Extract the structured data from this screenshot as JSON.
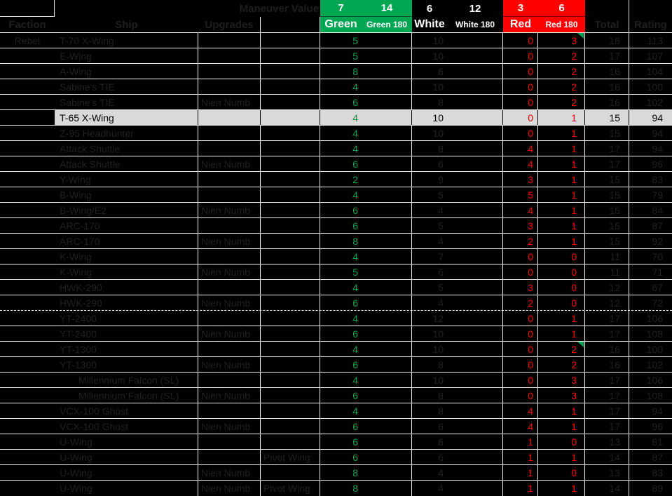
{
  "sheet": {
    "maneuver_value_label": "Maneuver Value",
    "improve_values": {
      "green": 7,
      "green_180": 14,
      "white": 6,
      "white_180": 12,
      "red": 3,
      "red_180": 6
    },
    "column_headers": {
      "faction": "Faction",
      "ship": "Ship",
      "upgrades": "Upgrades",
      "green": "Green",
      "green_180": "Green 180",
      "white": "White",
      "white_180": "White 180",
      "red": "Red",
      "red_180": "Red 180",
      "total": "Total",
      "rating": "Rating"
    }
  },
  "colors": {
    "background": "#000000",
    "header_green": "#00A651",
    "header_red": "#FE0000",
    "data_green_text": "#16A14D",
    "data_red_text": "#FF0000",
    "dim_text_on_black": "#202020",
    "highlight_row_bg": "#D9D9D9",
    "gridline": "#EEEEEE",
    "comment_marker": "#00A651"
  },
  "rows": [
    {
      "faction": "Rebel",
      "ship": "T-70 X-Wing",
      "indent": false,
      "upgrade1": "",
      "upgrade2": "",
      "green": 5,
      "white": 10,
      "red": 0,
      "red180": 3,
      "total": 18,
      "rating": 113,
      "highlighted": false,
      "marker": true,
      "page_break_after": false
    },
    {
      "faction": "",
      "ship": "E-Wing",
      "indent": false,
      "upgrade1": "",
      "upgrade2": "",
      "green": 5,
      "white": 10,
      "red": 0,
      "red180": 2,
      "total": 17,
      "rating": 107,
      "highlighted": false,
      "marker": false,
      "page_break_after": false
    },
    {
      "faction": "",
      "ship": "A-Wing",
      "indent": false,
      "upgrade1": "",
      "upgrade2": "",
      "green": 8,
      "white": 6,
      "red": 0,
      "red180": 2,
      "total": 16,
      "rating": 104,
      "highlighted": false,
      "marker": false,
      "page_break_after": false
    },
    {
      "faction": "",
      "ship": "Sabine's TIE",
      "indent": false,
      "upgrade1": "",
      "upgrade2": "",
      "green": 4,
      "white": 10,
      "red": 0,
      "red180": 2,
      "total": 16,
      "rating": 100,
      "highlighted": false,
      "marker": false,
      "page_break_after": false
    },
    {
      "faction": "",
      "ship": "Sabine's TIE",
      "indent": false,
      "upgrade1": "Nien Numb",
      "upgrade2": "",
      "green": 6,
      "white": 8,
      "red": 0,
      "red180": 2,
      "total": 16,
      "rating": 102,
      "highlighted": false,
      "marker": false,
      "page_break_after": false
    },
    {
      "faction": "",
      "ship": "T-65 X-Wing",
      "indent": false,
      "upgrade1": "",
      "upgrade2": "",
      "green": 4,
      "white": 10,
      "red": 0,
      "red180": 1,
      "total": 15,
      "rating": 94,
      "highlighted": true,
      "marker": false,
      "page_break_after": false
    },
    {
      "faction": "",
      "ship": "Z-95 Headhunter",
      "indent": false,
      "upgrade1": "",
      "upgrade2": "",
      "green": 4,
      "white": 10,
      "red": 0,
      "red180": 1,
      "total": 15,
      "rating": 94,
      "highlighted": false,
      "marker": false,
      "page_break_after": false
    },
    {
      "faction": "",
      "ship": "Attack Shuttle",
      "indent": false,
      "upgrade1": "",
      "upgrade2": "",
      "green": 4,
      "white": 8,
      "red": 4,
      "red180": 1,
      "total": 17,
      "rating": 94,
      "highlighted": false,
      "marker": false,
      "page_break_after": false
    },
    {
      "faction": "",
      "ship": "Attack Shuttle",
      "indent": false,
      "upgrade1": "Nien Numb",
      "upgrade2": "",
      "green": 6,
      "white": 6,
      "red": 4,
      "red180": 1,
      "total": 17,
      "rating": 96,
      "highlighted": false,
      "marker": false,
      "page_break_after": false
    },
    {
      "faction": "",
      "ship": "Y-Wing",
      "indent": false,
      "upgrade1": "",
      "upgrade2": "",
      "green": 2,
      "white": 9,
      "red": 3,
      "red180": 1,
      "total": 15,
      "rating": 83,
      "highlighted": false,
      "marker": false,
      "page_break_after": false
    },
    {
      "faction": "",
      "ship": "B-Wing",
      "indent": false,
      "upgrade1": "",
      "upgrade2": "",
      "green": 4,
      "white": 5,
      "red": 5,
      "red180": 1,
      "total": 15,
      "rating": 79,
      "highlighted": false,
      "marker": false,
      "page_break_after": false
    },
    {
      "faction": "",
      "ship": "B-Wing/E2",
      "indent": false,
      "upgrade1": "Nien Numb",
      "upgrade2": "",
      "green": 6,
      "white": 4,
      "red": 4,
      "red180": 1,
      "total": 15,
      "rating": 84,
      "highlighted": false,
      "marker": false,
      "page_break_after": false
    },
    {
      "faction": "",
      "ship": "ARC-170",
      "indent": false,
      "upgrade1": "",
      "upgrade2": "",
      "green": 6,
      "white": 5,
      "red": 3,
      "red180": 1,
      "total": 15,
      "rating": 87,
      "highlighted": false,
      "marker": false,
      "page_break_after": false
    },
    {
      "faction": "",
      "ship": "ARC-170",
      "indent": false,
      "upgrade1": "Nien Numb",
      "upgrade2": "",
      "green": 8,
      "white": 4,
      "red": 2,
      "red180": 1,
      "total": 15,
      "rating": 92,
      "highlighted": false,
      "marker": false,
      "page_break_after": false
    },
    {
      "faction": "",
      "ship": "K-Wing",
      "indent": false,
      "upgrade1": "",
      "upgrade2": "",
      "green": 4,
      "white": 7,
      "red": 0,
      "red180": 0,
      "total": 11,
      "rating": 70,
      "highlighted": false,
      "marker": false,
      "page_break_after": false
    },
    {
      "faction": "",
      "ship": "K-Wing",
      "indent": false,
      "upgrade1": "Nien Numb",
      "upgrade2": "",
      "green": 5,
      "white": 6,
      "red": 0,
      "red180": 0,
      "total": 11,
      "rating": 71,
      "highlighted": false,
      "marker": false,
      "page_break_after": false
    },
    {
      "faction": "",
      "ship": "HWK-290",
      "indent": false,
      "upgrade1": "",
      "upgrade2": "",
      "green": 4,
      "white": 5,
      "red": 3,
      "red180": 0,
      "total": 12,
      "rating": 67,
      "highlighted": false,
      "marker": false,
      "page_break_after": false
    },
    {
      "faction": "",
      "ship": "HWK-290",
      "indent": false,
      "upgrade1": "Nien Numb",
      "upgrade2": "",
      "green": 6,
      "white": 4,
      "red": 2,
      "red180": 0,
      "total": 12,
      "rating": 72,
      "highlighted": false,
      "marker": false,
      "page_break_after": true
    },
    {
      "faction": "",
      "ship": "YT-2400",
      "indent": false,
      "upgrade1": "",
      "upgrade2": "",
      "green": 4,
      "white": 12,
      "red": 0,
      "red180": 1,
      "total": 17,
      "rating": 106,
      "highlighted": false,
      "marker": false,
      "page_break_after": false
    },
    {
      "faction": "",
      "ship": "YT-2400",
      "indent": false,
      "upgrade1": "Nien Numb",
      "upgrade2": "",
      "green": 6,
      "white": 10,
      "red": 0,
      "red180": 1,
      "total": 17,
      "rating": 108,
      "highlighted": false,
      "marker": false,
      "page_break_after": false
    },
    {
      "faction": "",
      "ship": "YT-1300",
      "indent": false,
      "upgrade1": "",
      "upgrade2": "",
      "green": 4,
      "white": 10,
      "red": 0,
      "red180": 2,
      "total": 16,
      "rating": 100,
      "highlighted": false,
      "marker": true,
      "page_break_after": false
    },
    {
      "faction": "",
      "ship": "YT-1300",
      "indent": false,
      "upgrade1": "Nien Numb",
      "upgrade2": "",
      "green": 6,
      "white": 8,
      "red": 0,
      "red180": 2,
      "total": 16,
      "rating": 102,
      "highlighted": false,
      "marker": false,
      "page_break_after": false
    },
    {
      "faction": "",
      "ship": "Millennium Falcon (SL)",
      "indent": true,
      "upgrade1": "",
      "upgrade2": "",
      "green": 4,
      "white": 10,
      "red": 0,
      "red180": 3,
      "total": 17,
      "rating": 106,
      "highlighted": false,
      "marker": false,
      "page_break_after": false
    },
    {
      "faction": "",
      "ship": "Millennium Falcon (SL)",
      "indent": true,
      "upgrade1": "Nien Numb",
      "upgrade2": "",
      "green": 6,
      "white": 8,
      "red": 0,
      "red180": 3,
      "total": 17,
      "rating": 108,
      "highlighted": false,
      "marker": false,
      "page_break_after": false
    },
    {
      "faction": "",
      "ship": "VCX-100 Ghost",
      "indent": false,
      "upgrade1": "",
      "upgrade2": "",
      "green": 4,
      "white": 8,
      "red": 4,
      "red180": 1,
      "total": 17,
      "rating": 94,
      "highlighted": false,
      "marker": false,
      "page_break_after": false
    },
    {
      "faction": "",
      "ship": "VCX-100 Ghost",
      "indent": false,
      "upgrade1": "Nien Numb",
      "upgrade2": "",
      "green": 6,
      "white": 6,
      "red": 4,
      "red180": 1,
      "total": 17,
      "rating": 96,
      "highlighted": false,
      "marker": false,
      "page_break_after": false
    },
    {
      "faction": "",
      "ship": "U-Wing",
      "indent": false,
      "upgrade1": "",
      "upgrade2": "",
      "green": 6,
      "white": 6,
      "red": 1,
      "red180": 0,
      "total": 13,
      "rating": 81,
      "highlighted": false,
      "marker": false,
      "page_break_after": false
    },
    {
      "faction": "",
      "ship": "U-Wing",
      "indent": false,
      "upgrade1": "",
      "upgrade2": "Pivot Wing",
      "green": 6,
      "white": 6,
      "red": 1,
      "red180": 1,
      "total": 14,
      "rating": 87,
      "highlighted": false,
      "marker": false,
      "page_break_after": false
    },
    {
      "faction": "",
      "ship": "U-Wing",
      "indent": false,
      "upgrade1": "Nien Numb",
      "upgrade2": "",
      "green": 8,
      "white": 4,
      "red": 1,
      "red180": 0,
      "total": 13,
      "rating": 83,
      "highlighted": false,
      "marker": false,
      "page_break_after": false
    },
    {
      "faction": "",
      "ship": "U-Wing",
      "indent": false,
      "upgrade1": "Nien Numb",
      "upgrade2": "Pivot Wing",
      "green": 8,
      "white": 4,
      "red": 1,
      "red180": 1,
      "total": 14,
      "rating": 89,
      "highlighted": false,
      "marker": false,
      "page_break_after": false
    }
  ]
}
